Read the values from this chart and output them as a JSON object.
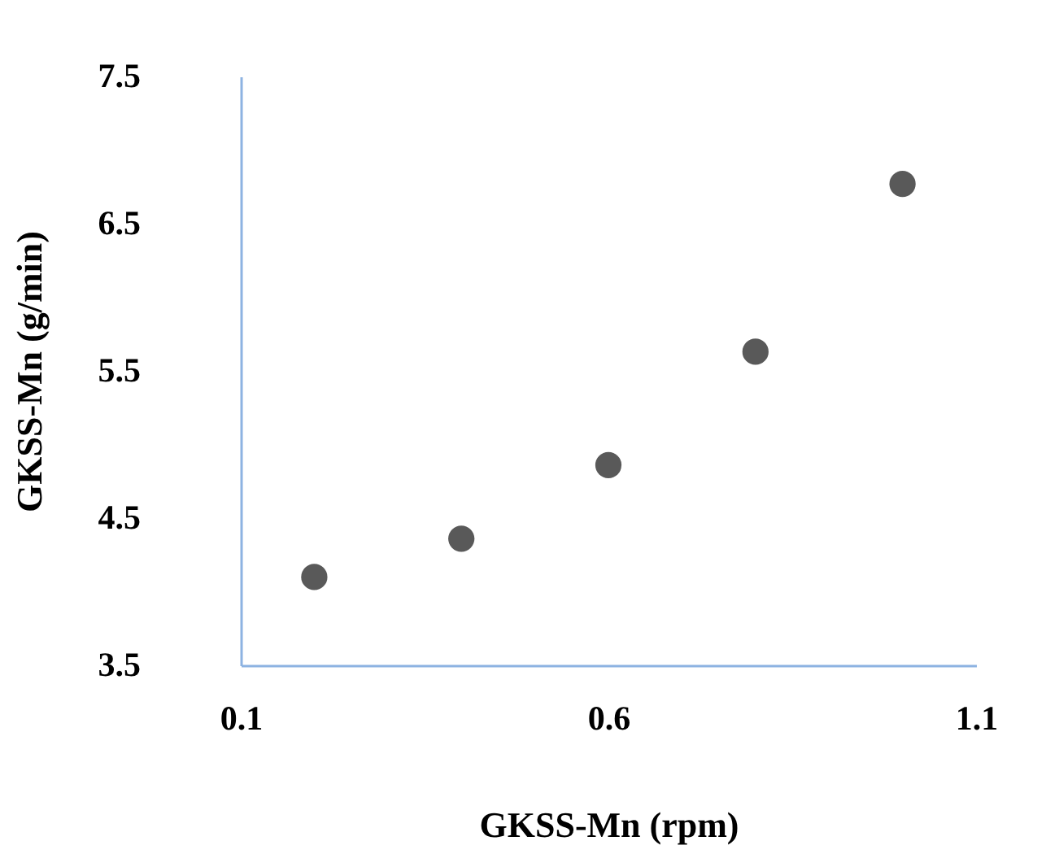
{
  "chart_data": {
    "type": "scatter",
    "xlabel": "GKSS-Mn (rpm)",
    "ylabel": "GKSS-Mn (g/min)",
    "x": [
      0.2,
      0.4,
      0.6,
      0.8,
      1.0
    ],
    "series": [
      {
        "color": "#595959",
        "values": [
          4.1,
          4.36,
          4.86,
          5.63,
          6.77
        ]
      }
    ],
    "xlim": [
      0.1,
      1.1
    ],
    "xticks": [
      0.1,
      0.6,
      1.1
    ],
    "ylim": [
      3.5,
      7.5
    ],
    "yticks": [
      3.5,
      4.5,
      5.5,
      6.5,
      7.5
    ],
    "marker": "circle",
    "grid": false,
    "legend": false
  }
}
